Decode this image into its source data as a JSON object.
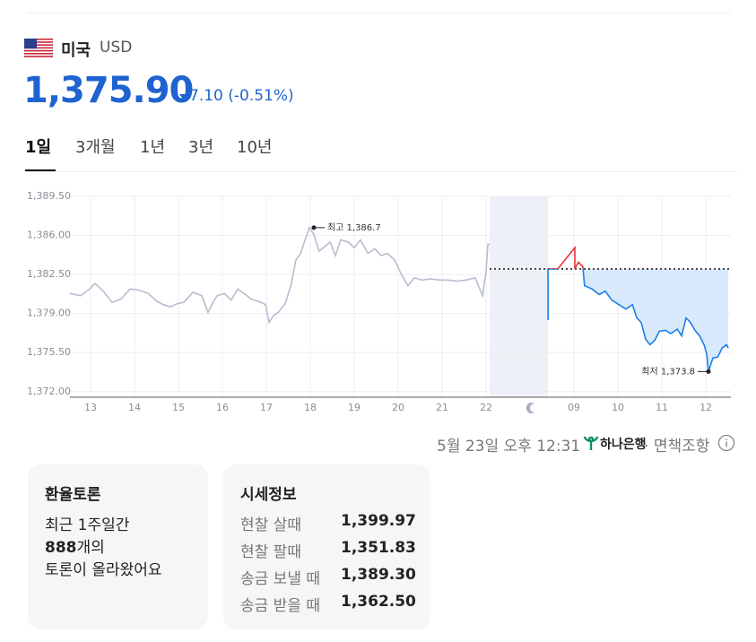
{
  "header": {
    "country": "미국",
    "currency": "USD",
    "price": "1,375.90",
    "change": "7.10",
    "change_pct": "(-0.51%)"
  },
  "tabs": [
    "1일",
    "3개월",
    "1년",
    "3년",
    "10년"
  ],
  "active_tab": 0,
  "chart_data": {
    "type": "line",
    "xlim": [
      -0.47,
      14.57
    ],
    "ylim": [
      1371.5,
      1389.5
    ],
    "xticks": [
      {
        "value": 0,
        "label": "13"
      },
      {
        "value": 1,
        "label": "14"
      },
      {
        "value": 2,
        "label": "15"
      },
      {
        "value": 3,
        "label": "16"
      },
      {
        "value": 4,
        "label": "17"
      },
      {
        "value": 5,
        "label": "18"
      },
      {
        "value": 6,
        "label": "19"
      },
      {
        "value": 7,
        "label": "20"
      },
      {
        "value": 8,
        "label": "21"
      },
      {
        "value": 9,
        "label": "22"
      },
      {
        "value": 11,
        "label": "09"
      },
      {
        "value": 12,
        "label": "10"
      },
      {
        "value": 13,
        "label": "11"
      },
      {
        "value": 14,
        "label": "12"
      }
    ],
    "yticks": [
      {
        "value": 1372,
        "label": "1,372.00"
      },
      {
        "value": 1375.5,
        "label": "1,375.50"
      },
      {
        "value": 1379,
        "label": "1,379.00"
      },
      {
        "value": 1382.5,
        "label": "1,382.50"
      },
      {
        "value": 1386,
        "label": "1,386.00"
      },
      {
        "value": 1389.5,
        "label": "1,389.50"
      }
    ],
    "grid": true,
    "baseline": 1383.0,
    "area_color": "#d8e9fc",
    "series": [
      {
        "color": "#b9bcd0",
        "x": [
          -0.47,
          -0.23,
          -0.02,
          0.1,
          0.29,
          0.49,
          0.69,
          0.9,
          1.1,
          1.31,
          1.51,
          1.65,
          1.82,
          1.98,
          2.12,
          2.33,
          2.53,
          2.67,
          2.8,
          2.88,
          3.04,
          3.2,
          3.35,
          3.49,
          3.65,
          3.82,
          3.98,
          4.06,
          4.16,
          4.27,
          4.43,
          4.57,
          4.67,
          4.78,
          4.88,
          4.98,
          5.08,
          5.2,
          5.33,
          5.45,
          5.57,
          5.69,
          5.86,
          6.0,
          6.14,
          6.31,
          6.47,
          6.61,
          6.75,
          6.92,
          7.06,
          7.22,
          7.37,
          7.53,
          7.73,
          7.94,
          8.14,
          8.35,
          8.55,
          8.75,
          8.92,
          9.0,
          9.04,
          9.08
        ],
        "values": [
          1380.8,
          1380.6,
          1381.2,
          1381.7,
          1381.0,
          1380.0,
          1380.3,
          1381.2,
          1381.1,
          1380.8,
          1380.1,
          1379.8,
          1379.6,
          1379.9,
          1380.0,
          1380.9,
          1380.6,
          1379.1,
          1380.1,
          1380.6,
          1380.8,
          1380.2,
          1381.2,
          1380.8,
          1380.3,
          1380.1,
          1379.8,
          1378.2,
          1378.8,
          1379.1,
          1379.9,
          1381.7,
          1383.8,
          1384.4,
          1385.6,
          1386.7,
          1386.1,
          1384.6,
          1385.0,
          1385.4,
          1384.2,
          1385.6,
          1385.4,
          1384.9,
          1385.6,
          1384.4,
          1384.8,
          1384.2,
          1384.4,
          1383.8,
          1382.6,
          1381.5,
          1382.2,
          1382.0,
          1382.1,
          1382.0,
          1382.0,
          1381.9,
          1382.0,
          1382.2,
          1380.6,
          1382.8,
          1385.2,
          1385.2
        ]
      },
      {
        "color": "#1a7fe8",
        "color_above": "#e8343c",
        "x": [
          10.41,
          10.41,
          10.63,
          11.02,
          11.02,
          11.1,
          11.2,
          11.24,
          11.41,
          11.57,
          11.71,
          11.86,
          12.02,
          12.18,
          12.33,
          12.43,
          12.53,
          12.63,
          12.73,
          12.84,
          12.94,
          13.08,
          13.2,
          13.35,
          13.45,
          13.55,
          13.65,
          13.75,
          13.86,
          13.96,
          14.02,
          14.06,
          14.16,
          14.27,
          14.37,
          14.47,
          14.51
        ],
        "values": [
          1378.4,
          1383.0,
          1383.0,
          1384.9,
          1383.0,
          1383.6,
          1383.2,
          1381.5,
          1381.2,
          1380.7,
          1381.0,
          1380.2,
          1379.8,
          1379.4,
          1379.8,
          1378.6,
          1378.2,
          1376.7,
          1376.2,
          1376.6,
          1377.4,
          1377.5,
          1377.2,
          1377.6,
          1377.0,
          1378.6,
          1378.2,
          1377.5,
          1377.0,
          1376.2,
          1375.4,
          1373.8,
          1375.0,
          1375.1,
          1375.9,
          1376.2,
          1375.9
        ]
      }
    ],
    "annotations": [
      {
        "text": "최고 1,386.7",
        "x": 5.08,
        "y": 1386.7,
        "side": "right"
      },
      {
        "text": "최저 1,373.8",
        "x": 14.06,
        "y": 1373.8,
        "side": "left"
      }
    ]
  },
  "footer": {
    "timestamp": "5월 23일 오후 12:31",
    "bank": "하나은행",
    "disclaimer": "면책조항"
  },
  "discussion": {
    "title": "환율토론",
    "intro": "최근 1주일간",
    "count": "888",
    "count_suffix": "개의",
    "outro": "토론이 올라왔어요"
  },
  "quotes": {
    "title": "시세정보",
    "rows": [
      {
        "label": "현찰 살때",
        "value": "1,399.97"
      },
      {
        "label": "현찰 팔때",
        "value": "1,351.83"
      },
      {
        "label": "송금 보낼 때",
        "value": "1,389.30"
      },
      {
        "label": "송금 받을 때",
        "value": "1,362.50"
      }
    ]
  }
}
